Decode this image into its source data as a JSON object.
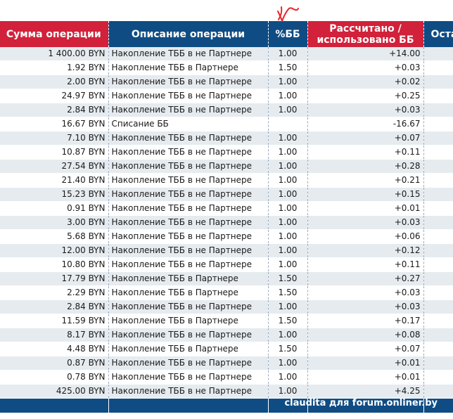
{
  "headers": {
    "amount": "Сумма операции",
    "description": "Описание операции",
    "percent": "%ББ",
    "calculated_line1": "Рассчитано /",
    "calculated_line2": "использовано ББ",
    "remaining": "Оста"
  },
  "rows": [
    {
      "amount": "1 400.00 BYN",
      "description": "Накопление ТББ в не Партнере",
      "percent": "1.00",
      "calculated": "+14.00"
    },
    {
      "amount": "1.92 BYN",
      "description": "Накопление ТББ в Партнере",
      "percent": "1.50",
      "calculated": "+0.03"
    },
    {
      "amount": "2.00 BYN",
      "description": "Накопление ТББ в не Партнере",
      "percent": "1.00",
      "calculated": "+0.02"
    },
    {
      "amount": "24.97 BYN",
      "description": "Накопление ТББ в не Партнере",
      "percent": "1.00",
      "calculated": "+0.25"
    },
    {
      "amount": "2.84 BYN",
      "description": "Накопление ТББ в не Партнере",
      "percent": "1.00",
      "calculated": "+0.03"
    },
    {
      "amount": "16.67 BYN",
      "description": "Списание ББ",
      "percent": "",
      "calculated": "-16.67"
    },
    {
      "amount": "7.10 BYN",
      "description": "Накопление ТББ в не Партнере",
      "percent": "1.00",
      "calculated": "+0.07"
    },
    {
      "amount": "10.87 BYN",
      "description": "Накопление ТББ в не Партнере",
      "percent": "1.00",
      "calculated": "+0.11"
    },
    {
      "amount": "27.54 BYN",
      "description": "Накопление ТББ в не Партнере",
      "percent": "1.00",
      "calculated": "+0.28"
    },
    {
      "amount": "21.40 BYN",
      "description": "Накопление ТББ в не Партнере",
      "percent": "1.00",
      "calculated": "+0.21"
    },
    {
      "amount": "15.23 BYN",
      "description": "Накопление ТББ в не Партнере",
      "percent": "1.00",
      "calculated": "+0.15"
    },
    {
      "amount": "0.91 BYN",
      "description": "Накопление ТББ в не Партнере",
      "percent": "1.00",
      "calculated": "+0.01"
    },
    {
      "amount": "3.00 BYN",
      "description": "Накопление ТББ в не Партнере",
      "percent": "1.00",
      "calculated": "+0.03"
    },
    {
      "amount": "5.68 BYN",
      "description": "Накопление ТББ в не Партнере",
      "percent": "1.00",
      "calculated": "+0.06"
    },
    {
      "amount": "12.00 BYN",
      "description": "Накопление ТББ в не Партнере",
      "percent": "1.00",
      "calculated": "+0.12"
    },
    {
      "amount": "10.80 BYN",
      "description": "Накопление ТББ в не Партнере",
      "percent": "1.00",
      "calculated": "+0.11"
    },
    {
      "amount": "17.79 BYN",
      "description": "Накопление ТББ в Партнере",
      "percent": "1.50",
      "calculated": "+0.27"
    },
    {
      "amount": "2.29 BYN",
      "description": "Накопление ТББ в Партнере",
      "percent": "1.50",
      "calculated": "+0.03"
    },
    {
      "amount": "2.84 BYN",
      "description": "Накопление ТББ в не Партнере",
      "percent": "1.00",
      "calculated": "+0.03"
    },
    {
      "amount": "11.59 BYN",
      "description": "Накопление ТББ в Партнере",
      "percent": "1.50",
      "calculated": "+0.17"
    },
    {
      "amount": "8.17 BYN",
      "description": "Накопление ТББ в не Партнере",
      "percent": "1.00",
      "calculated": "+0.08"
    },
    {
      "amount": "4.48 BYN",
      "description": "Накопление ТББ в Партнере",
      "percent": "1.50",
      "calculated": "+0.07"
    },
    {
      "amount": "0.87 BYN",
      "description": "Накопление ТББ в не Партнере",
      "percent": "1.00",
      "calculated": "+0.01"
    },
    {
      "amount": "0.78 BYN",
      "description": "Накопление ТББ в не Партнере",
      "percent": "1.00",
      "calculated": "+0.01"
    },
    {
      "amount": "425.00 BYN",
      "description": "Накопление ТББ в не Партнере",
      "percent": "1.00",
      "calculated": "+4.25"
    }
  ],
  "watermark": "claudita для forum.onliner.by",
  "annotation": {
    "icon": "hand-drawn-red-arrow-icon",
    "color": "#e8262b"
  },
  "colors": {
    "header_red": "#d2213a",
    "header_blue": "#0f4c84",
    "row_alt": "#e6ebef"
  }
}
